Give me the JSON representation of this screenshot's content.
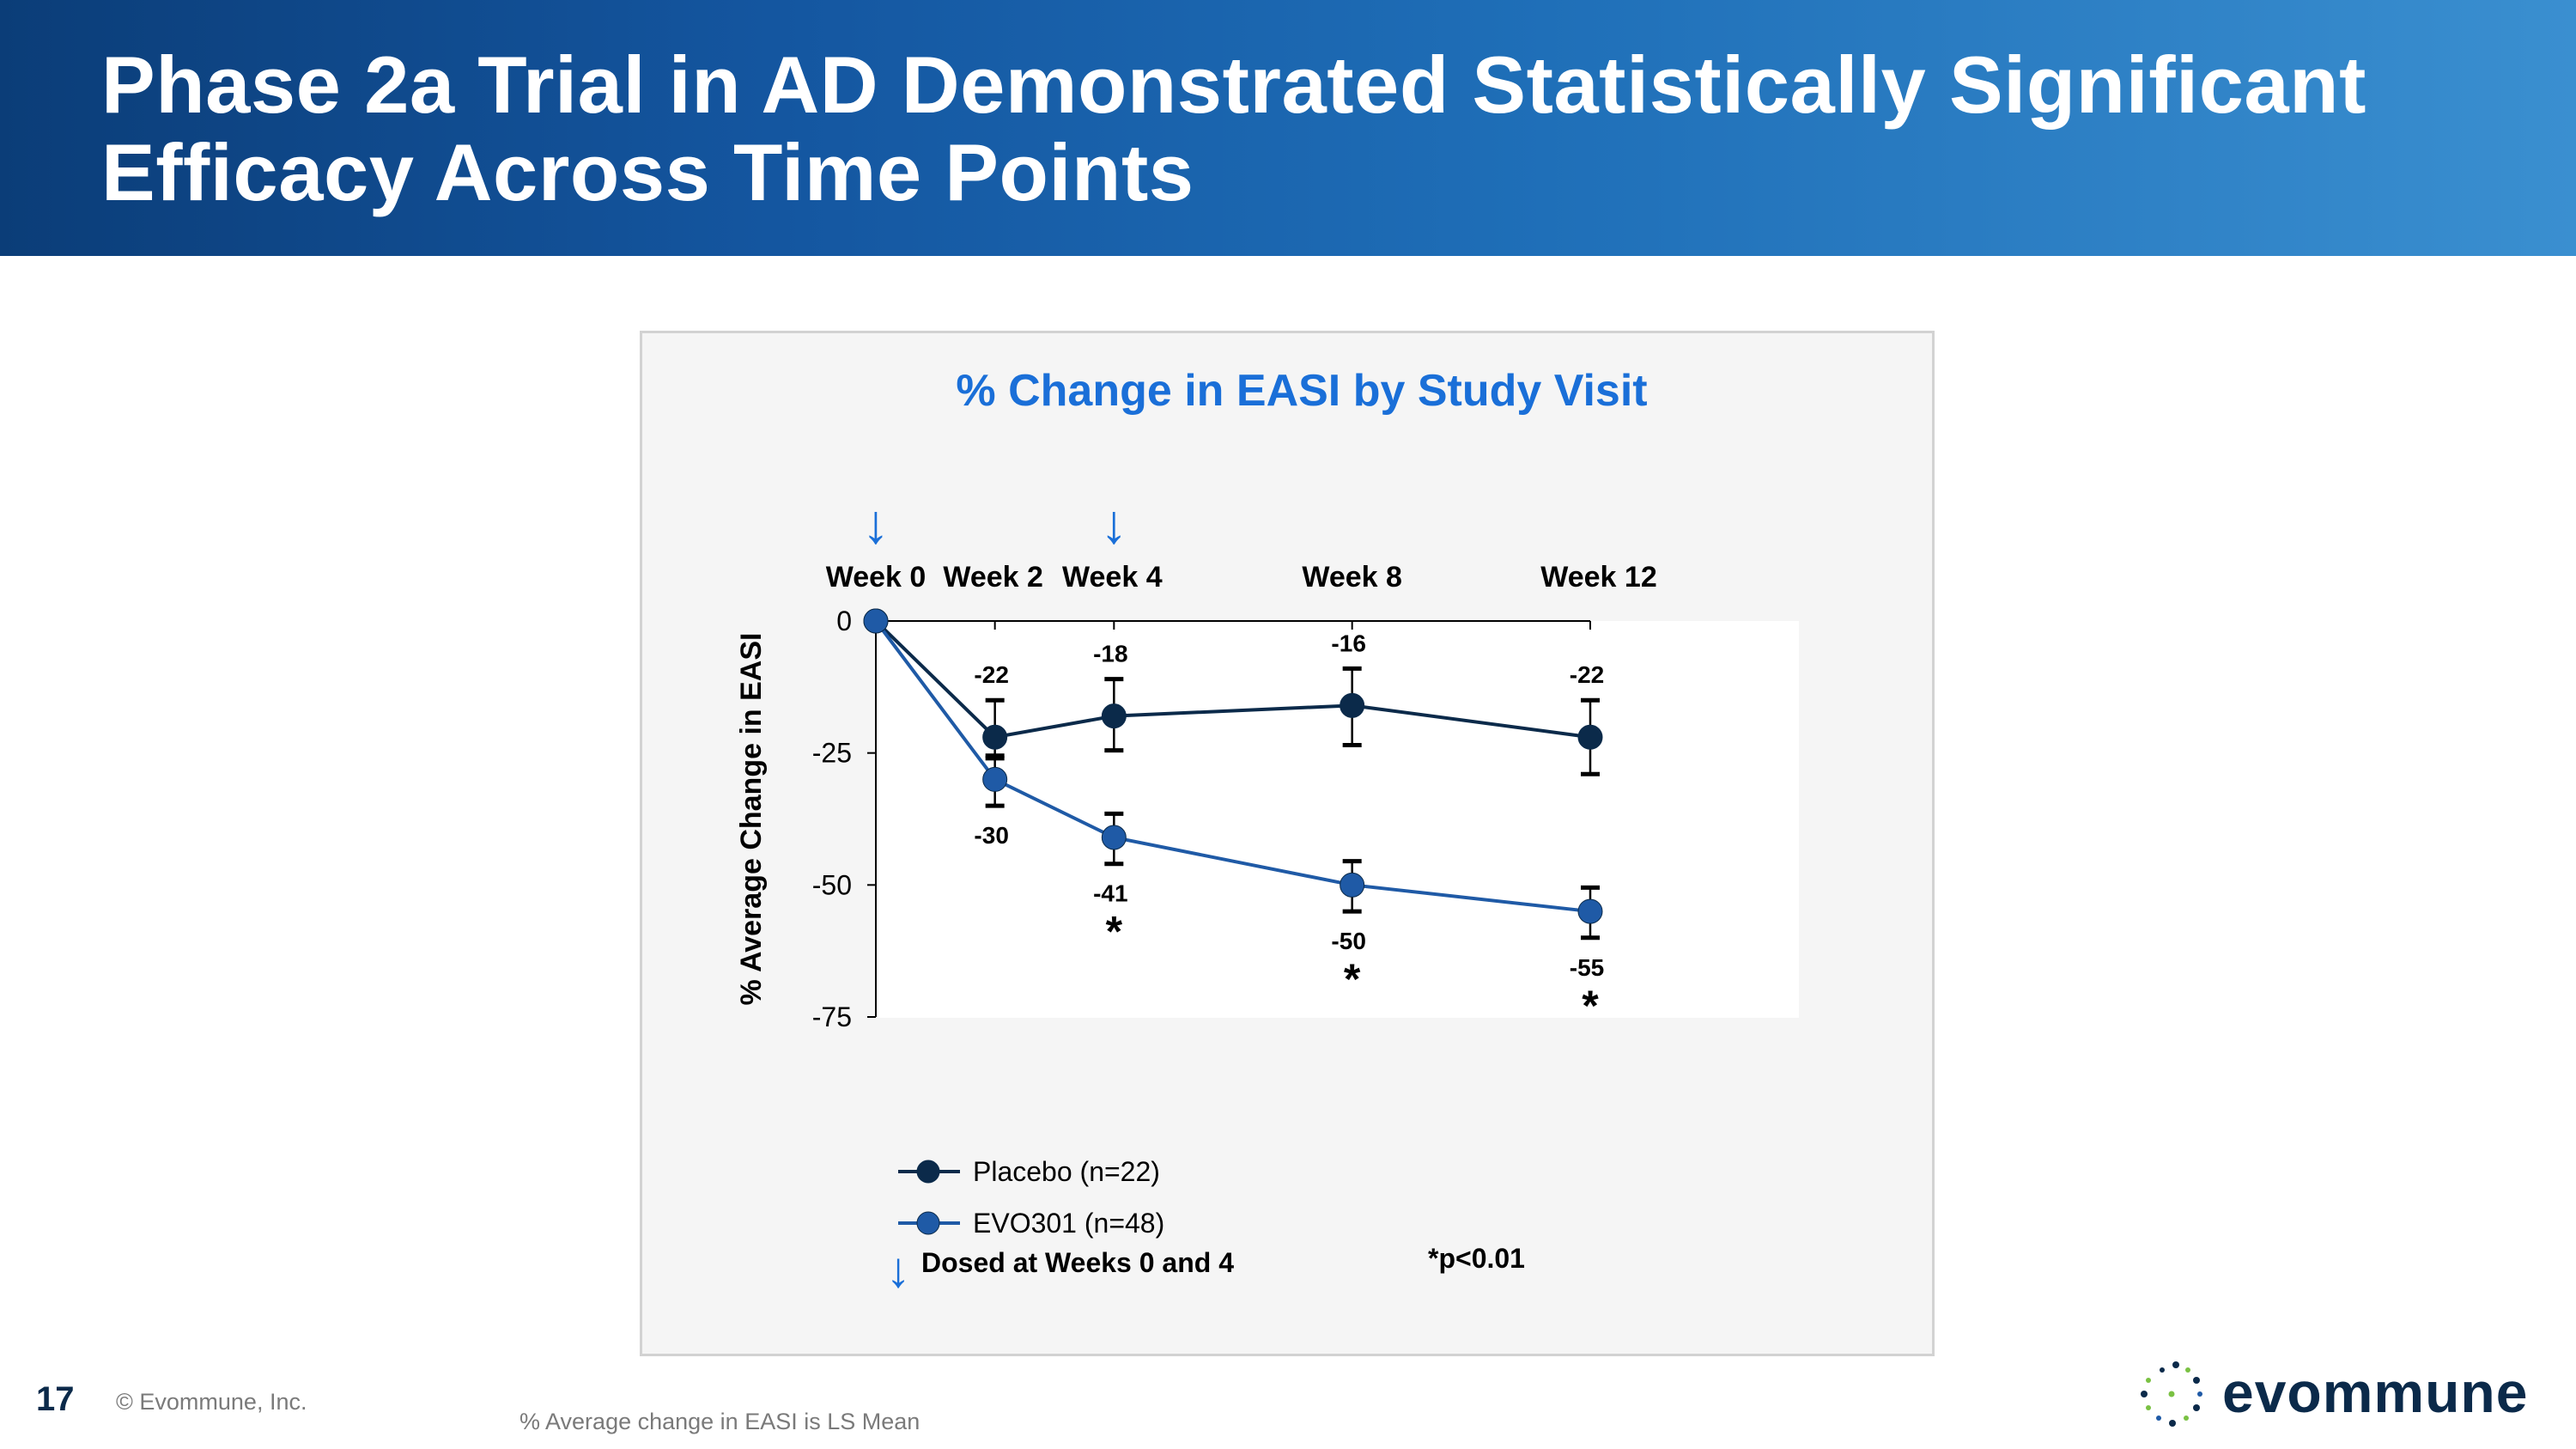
{
  "slide": {
    "title_line1": "Phase 2a Trial in AD Demonstrated Statistically Significant",
    "title_line2": "Efficacy Across Time Points",
    "page_number": "17",
    "copyright": "© Evommune, Inc.",
    "footnote": "% Average change in EASI is LS Mean",
    "logo_text": "evommune"
  },
  "colors": {
    "header_blue": "#1456a0",
    "title_blue": "#1a6fd8",
    "placebo": "#0b2a4a",
    "evo301": "#1f5aa6",
    "arrow": "#1a6fd8"
  },
  "chart_data": {
    "type": "line",
    "title": "% Change in EASI by Study Visit",
    "ylabel": "% Average Change in EASI",
    "xlabel": "",
    "x": [
      0,
      2,
      4,
      8,
      12
    ],
    "x_tick_labels": [
      "Week 0",
      "Week 2",
      "Week 4",
      "Week 8",
      "Week 12"
    ],
    "ylim": [
      -75,
      0
    ],
    "y_ticks": [
      0,
      -25,
      -50,
      -75
    ],
    "y_tick_labels": [
      "0",
      "-25",
      "-50",
      "-75"
    ],
    "series": [
      {
        "name": "Placebo (n=22)",
        "color": "#0b2a4a",
        "values": [
          0,
          -22,
          -18,
          -16,
          -22
        ],
        "error_low": [
          null,
          -26,
          -24.5,
          -23.5,
          -29
        ],
        "error_high": [
          null,
          -15,
          -11,
          -9,
          -15
        ],
        "point_labels": [
          "",
          "-22",
          "-18",
          "-16",
          "-22"
        ],
        "significant": [
          false,
          false,
          false,
          false,
          false
        ]
      },
      {
        "name": "EVO301 (n=48)",
        "color": "#1f5aa6",
        "values": [
          0,
          -30,
          -41,
          -50,
          -55
        ],
        "error_low": [
          null,
          -35,
          -46,
          -55,
          -60
        ],
        "error_high": [
          null,
          -25.5,
          -36.5,
          -45.5,
          -50.5
        ],
        "point_labels": [
          "",
          "-30",
          "-41",
          "-50",
          "-55"
        ],
        "significant": [
          false,
          false,
          true,
          true,
          true
        ]
      }
    ],
    "dosing_weeks": [
      0,
      4
    ],
    "dosing_label": "Dosed at Weeks 0 and 4",
    "significance_label": "*p<0.01",
    "significance_marker": "*",
    "legend_position": "bottom-left",
    "grid": false
  }
}
